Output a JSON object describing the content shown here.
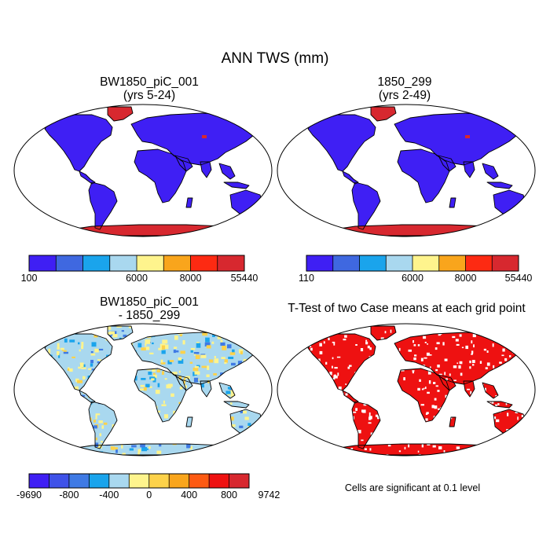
{
  "figure": {
    "title": "ANN TWS (mm)"
  },
  "panels": [
    {
      "id": "top-left",
      "title_line1": "BW1850_piC_001",
      "title_line2": "(yrs 5-24)",
      "map_kind": "field",
      "land_color": "#3f1ff4",
      "ice_color": "#d7282f"
    },
    {
      "id": "top-right",
      "title_line1": "1850_299",
      "title_line2": "(yrs 2-49)",
      "map_kind": "field",
      "land_color": "#3f1ff4",
      "ice_color": "#d7282f"
    },
    {
      "id": "bottom-left",
      "title_line1": "BW1850_piC_001",
      "title_line2": "- 1850_299",
      "map_kind": "difference",
      "land_color": "#a9d8ef",
      "ice_color": "#a9d8ef"
    },
    {
      "id": "bottom-right",
      "title_line1": "T-Test of two Case means at each grid point",
      "title_line2": "",
      "map_kind": "ttest",
      "land_color": "#ee1111",
      "ice_color": "#ee1111"
    }
  ],
  "colorbars": [
    {
      "id": "cbar-top-left",
      "colors": [
        "#3f1ff4",
        "#3f68e0",
        "#1aa4ec",
        "#a9d8ef",
        "#fef48d",
        "#f9a51c",
        "#fd2a12",
        "#d7282f"
      ],
      "labels": [
        "100",
        "6000",
        "8000",
        "55440"
      ],
      "label_positions": [
        0,
        4,
        6,
        8
      ]
    },
    {
      "id": "cbar-top-right",
      "colors": [
        "#3f1ff4",
        "#3f68e0",
        "#1aa4ec",
        "#a9d8ef",
        "#fef48d",
        "#f9a51c",
        "#fd2a12",
        "#d7282f"
      ],
      "labels": [
        "110",
        "6000",
        "8000",
        "55440"
      ],
      "label_positions": [
        0,
        4,
        6,
        8
      ]
    },
    {
      "id": "cbar-bottom-left",
      "colors": [
        "#3f1ff4",
        "#3f52e8",
        "#3f7ae4",
        "#1aa4ec",
        "#a9d8ef",
        "#fef48d",
        "#fdd24a",
        "#f9a51c",
        "#fd5a12",
        "#ee1111",
        "#d7282f"
      ],
      "labels": [
        "-9690",
        "-800",
        "-400",
        "0",
        "400",
        "800",
        "9742"
      ],
      "label_positions": [
        0,
        2,
        4,
        6,
        8,
        10,
        12
      ]
    }
  ],
  "note": {
    "text": "Cells are significant at 0.1 level"
  },
  "chart_data": [
    {
      "type": "heatmap",
      "title": "BW1850_piC_001 (yrs 5-24)",
      "variable": "ANN TWS (mm)",
      "colorbar_labels": [
        "100",
        "6000",
        "8000",
        "55440"
      ],
      "description_values": {
        "land_dominant_bin": "100-6000 (lowest)",
        "ice_sheets_bin": ">8000 (highest, up to 55440)"
      }
    },
    {
      "type": "heatmap",
      "title": "1850_299 (yrs 2-49)",
      "variable": "ANN TWS (mm)",
      "colorbar_labels": [
        "110",
        "6000",
        "8000",
        "55440"
      ],
      "description_values": {
        "land_dominant_bin": "110-6000 (lowest)",
        "ice_sheets_bin": ">8000 (highest, up to 55440)"
      }
    },
    {
      "type": "heatmap",
      "title": "BW1850_piC_001 - 1850_299",
      "variable": "ANN TWS difference (mm)",
      "colorbar_labels": [
        "-9690",
        "-800",
        "-400",
        "0",
        "400",
        "800",
        "9742"
      ],
      "description_values": {
        "dominant_bins": "-400..0 and 0..400",
        "ice_sheets_bin": "-400..0"
      }
    },
    {
      "type": "heatmap",
      "title": "T-Test of two Case means at each grid point",
      "note": "Cells are significant at 0.1 level",
      "significant_color": "#ee1111"
    }
  ]
}
